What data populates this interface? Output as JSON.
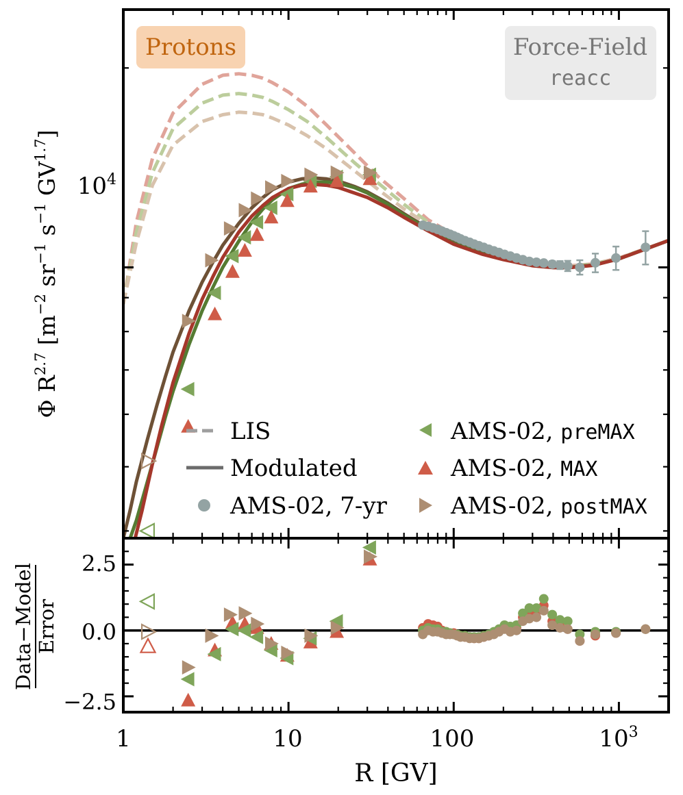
{
  "panel": {
    "species_tag": "Protons",
    "species_tag_color": "#f8d3b1",
    "species_tag_text_color": "#c0650f",
    "model_tag_line1": "Force-Field",
    "model_tag_line2": "reacc",
    "model_tag_color": "#ebebeb",
    "model_tag_text_color": "#777777"
  },
  "colors": {
    "sevenyr": "#93a3a3",
    "premax": "#7fa55a",
    "max": "#cf5c48",
    "postmax": "#ad8e72",
    "model_premax": "#557b32",
    "model_max": "#a5372b",
    "model_postmax": "#6e5136",
    "lis_premax": "#bccd9c",
    "lis_max": "#e0a49a",
    "lis_postmax": "#d8c2ac"
  },
  "legend": {
    "lis": "LIS",
    "modulated": "Modulated",
    "sevenyr": "AMS-02, 7-yr",
    "premax_prefix": "AMS-02, ",
    "premax_code": "preMAX",
    "max_prefix": "AMS-02, ",
    "max_code": "MAX",
    "postmax_prefix": "AMS-02, ",
    "postmax_code": "postMAX"
  },
  "axes": {
    "xlabel": "R [GV]",
    "ylabel_main": "Φ R^2.7 [m^-2 sr^-1 s^-1 GV^1.7]",
    "ylabel_resid_num": "Data−Model",
    "ylabel_resid_den": "Error",
    "x_ticks": [
      "1",
      "10",
      "100",
      "10^3"
    ],
    "y_main_tick": "10^4",
    "y_resid_ticks": [
      "2.5",
      "0.0",
      "−2.5"
    ]
  },
  "chart_data": [
    {
      "type": "line",
      "panel": "main",
      "xscale": "log",
      "yscale": "log",
      "xlim": [
        1,
        2000
      ],
      "ylim": [
        3900,
        24500
      ],
      "series": [
        {
          "name": "LIS",
          "style": "dashed",
          "color_key": "lis_max",
          "x": [
            1.0,
            1.2,
            1.5,
            2.0,
            3.0,
            4.0,
            5.0,
            6.0,
            7.0,
            8.0,
            10.0,
            13.0,
            17.0,
            25.0,
            35.0,
            50.0,
            70.0,
            100.0,
            150.0,
            200.0,
            300.0,
            400.0,
            500.0,
            700.0,
            1000.0,
            1500.0,
            2000.0
          ],
          "y": [
            8800,
            11700,
            14600,
            17100,
            18900,
            19500,
            19600,
            19500,
            19300,
            19000,
            18400,
            17500,
            16400,
            14900,
            13700,
            12700,
            11800,
            11200,
            10700,
            10450,
            10150,
            10050,
            10050,
            10120,
            10330,
            10700,
            10980
          ]
        },
        {
          "name": "LIS",
          "style": "dashed",
          "color_key": "lis_premax",
          "x": [
            1.0,
            1.2,
            1.5,
            2.0,
            3.0,
            4.0,
            5.0,
            6.0,
            7.0,
            8.0,
            10.0,
            13.0,
            17.0,
            25.0,
            35.0,
            50.0,
            70.0,
            100.0,
            150.0,
            200.0,
            300.0,
            400.0,
            500.0,
            700.0,
            1000.0,
            1500.0,
            2000.0
          ],
          "y": [
            8800,
            11300,
            13900,
            16200,
            17700,
            18200,
            18300,
            18200,
            18050,
            17800,
            17300,
            16600,
            15700,
            14400,
            13400,
            12450,
            11700,
            11100,
            10650,
            10420,
            10130,
            10040,
            10040,
            10110,
            10320,
            10700,
            10980
          ]
        },
        {
          "name": "LIS",
          "style": "dashed",
          "color_key": "lis_postmax",
          "x": [
            1.0,
            1.2,
            1.5,
            2.0,
            3.0,
            4.0,
            5.0,
            6.0,
            7.0,
            8.0,
            10.0,
            13.0,
            17.0,
            25.0,
            35.0,
            50.0,
            70.0,
            100.0,
            150.0,
            200.0,
            300.0,
            400.0,
            500.0,
            700.0,
            1000.0,
            1500.0,
            2000.0
          ],
          "y": [
            8800,
            10900,
            13300,
            15300,
            16600,
            17000,
            17150,
            17100,
            17000,
            16800,
            16400,
            15800,
            15100,
            14000,
            13100,
            12250,
            11600,
            11050,
            10620,
            10400,
            10120,
            10030,
            10030,
            10100,
            10310,
            10690,
            10980
          ]
        },
        {
          "name": "Modulated",
          "style": "solid",
          "color_key": "model_postmax",
          "x": [
            1.0,
            1.1,
            1.2,
            1.4,
            1.6,
            1.8,
            2.0,
            2.5,
            3.0,
            3.5,
            4.0,
            5.0,
            6.0,
            7.0,
            8.0,
            10.0,
            12.0,
            14.0,
            17.0,
            20.0,
            25.0,
            30.0,
            40.0,
            50.0,
            70.0,
            100.0,
            150.0,
            200.0,
            300.0,
            400.0,
            500.0,
            700.0,
            1000.0,
            1500.0,
            2000.0
          ],
          "y": [
            3900,
            4300,
            4750,
            5500,
            6200,
            6850,
            7450,
            8600,
            9500,
            10200,
            10800,
            11650,
            12300,
            12750,
            13100,
            13450,
            13600,
            13650,
            13600,
            13500,
            13250,
            13000,
            12500,
            12050,
            11450,
            10900,
            10500,
            10300,
            10070,
            10000,
            10000,
            10080,
            10300,
            10690,
            10980
          ]
        },
        {
          "name": "Modulated",
          "style": "solid",
          "color_key": "model_premax",
          "x": [
            1.1,
            1.2,
            1.4,
            1.6,
            1.8,
            2.0,
            2.5,
            3.0,
            3.5,
            4.0,
            5.0,
            6.0,
            7.0,
            8.0,
            10.0,
            12.0,
            14.0,
            17.0,
            20.0,
            25.0,
            30.0,
            40.0,
            50.0,
            70.0,
            100.0,
            150.0,
            200.0,
            300.0,
            400.0,
            500.0,
            700.0,
            1000.0,
            1500.0,
            2000.0
          ],
          "y": [
            3900,
            4150,
            4750,
            5350,
            5950,
            6500,
            7650,
            8600,
            9350,
            10000,
            10950,
            11700,
            12250,
            12650,
            13150,
            13350,
            13450,
            13450,
            13400,
            13200,
            12950,
            12450,
            12000,
            11400,
            10870,
            10480,
            10280,
            10060,
            9995,
            9995,
            10075,
            10300,
            10690,
            10980
          ]
        },
        {
          "name": "Modulated",
          "style": "solid",
          "color_key": "model_max",
          "x": [
            1.18,
            1.3,
            1.5,
            1.7,
            2.0,
            2.5,
            3.0,
            3.5,
            4.0,
            5.0,
            6.0,
            7.0,
            8.0,
            10.0,
            12.0,
            14.0,
            17.0,
            20.0,
            25.0,
            30.0,
            40.0,
            50.0,
            70.0,
            100.0,
            150.0,
            200.0,
            300.0,
            400.0,
            500.0,
            700.0,
            1000.0,
            1500.0,
            2000.0
          ],
          "y": [
            3900,
            4300,
            5050,
            5750,
            6700,
            7950,
            8950,
            9700,
            10350,
            11300,
            11950,
            12400,
            12750,
            13150,
            13300,
            13350,
            13300,
            13200,
            12950,
            12750,
            12300,
            11900,
            11350,
            10840,
            10460,
            10270,
            10055,
            9990,
            9990,
            10070,
            10300,
            10690,
            10980
          ]
        }
      ]
    },
    {
      "type": "scatter",
      "panel": "main",
      "xscale": "log",
      "yscale": "log",
      "series": [
        {
          "name": "AMS-02, 7-yr",
          "marker": "circle",
          "color_key": "sevenyr",
          "x": [
            65,
            70,
            75,
            80,
            85,
            90,
            95,
            100,
            105,
            110,
            117,
            125,
            133,
            142,
            152,
            163,
            175,
            188,
            203,
            220,
            240,
            262,
            287,
            317,
            351,
            395,
            440,
            490,
            580,
            720,
            960,
            1450
          ],
          "y": [
            11580,
            11530,
            11470,
            11410,
            11340,
            11280,
            11220,
            11160,
            11100,
            11040,
            10970,
            10910,
            10840,
            10780,
            10720,
            10650,
            10590,
            10530,
            10460,
            10400,
            10330,
            10270,
            10210,
            10180,
            10150,
            10110,
            10080,
            10050,
            10000,
            10160,
            10330,
            10720
          ],
          "yerr": [
            25,
            25,
            25,
            25,
            25,
            25,
            25,
            25,
            25,
            25,
            25,
            25,
            25,
            25,
            25,
            25,
            25,
            30,
            30,
            30,
            35,
            40,
            50,
            60,
            80,
            110,
            140,
            180,
            250,
            330,
            420,
            620
          ]
        },
        {
          "name": "AMS-02, preMAX",
          "marker": "tri-left",
          "color_key": "premax",
          "x": [
            2.47,
            3.58,
            4.58,
            5.44,
            6.45,
            7.86,
            9.83,
            13.6,
            19.6,
            31.1
          ],
          "y": [
            6550,
            9150,
            10400,
            11100,
            11700,
            12300,
            12900,
            13500,
            13700,
            13800
          ]
        },
        {
          "name": "AMS-02, preMAX (open)",
          "marker": "tri-left-open",
          "color_key": "premax",
          "x": [
            1.41
          ],
          "y": [
            4000
          ]
        },
        {
          "name": "AMS-02, MAX",
          "marker": "tri-up",
          "color_key": "max",
          "x": [
            2.47,
            3.58,
            4.58,
            5.44,
            6.45,
            7.86,
            9.83,
            13.6,
            19.6,
            31.1
          ],
          "y": [
            5750,
            8500,
            9850,
            10600,
            11200,
            11900,
            12600,
            13250,
            13500,
            13600
          ]
        },
        {
          "name": "AMS-02, postMAX",
          "marker": "tri-right",
          "color_key": "postmax",
          "x": [
            2.47,
            3.41,
            4.43,
            5.44,
            6.45,
            7.86,
            9.83,
            13.6,
            19.6,
            31.1
          ],
          "y": [
            8300,
            10250,
            11450,
            12200,
            12700,
            13200,
            13500,
            13800,
            13900,
            13900
          ]
        },
        {
          "name": "AMS-02, postMAX (open)",
          "marker": "tri-right-open",
          "color_key": "postmax",
          "x": [
            1.41
          ],
          "y": [
            5100
          ]
        }
      ]
    },
    {
      "type": "scatter",
      "panel": "residual",
      "xscale": "log",
      "yscale": "linear",
      "xlim": [
        1,
        2000
      ],
      "ylim": [
        -3.1,
        3.5
      ],
      "ylabel": "Data−Model / Error",
      "xlabel": "R [GV]",
      "series": [
        {
          "name": "MAX",
          "marker": "tri-up",
          "color_key": "max",
          "x": [
            2.47,
            3.58,
            4.58,
            5.44,
            6.45,
            7.86,
            9.83,
            13.6,
            19.6,
            31.1
          ],
          "y": [
            -2.65,
            -0.75,
            0.3,
            0.25,
            0.1,
            -0.5,
            -0.95,
            -0.45,
            -0.05,
            2.7
          ]
        },
        {
          "name": "MAX (open)",
          "marker": "tri-up-open",
          "color_key": "max",
          "x": [
            1.41
          ],
          "y": [
            -0.6
          ]
        },
        {
          "name": "preMAX",
          "marker": "tri-left",
          "color_key": "premax",
          "x": [
            2.47,
            3.58,
            4.58,
            5.44,
            6.45,
            7.86,
            9.83,
            13.6,
            19.6,
            31.1
          ],
          "y": [
            -1.85,
            -0.9,
            0.05,
            0.0,
            -0.25,
            -0.75,
            -1.05,
            -0.3,
            0.35,
            3.15
          ]
        },
        {
          "name": "preMAX (open)",
          "marker": "tri-left-open",
          "color_key": "premax",
          "x": [
            1.41
          ],
          "y": [
            1.1
          ]
        },
        {
          "name": "postMAX",
          "marker": "tri-right",
          "color_key": "postmax",
          "x": [
            2.47,
            3.41,
            4.43,
            5.44,
            6.45,
            7.86,
            9.83,
            13.6,
            19.6,
            31.1
          ],
          "y": [
            -1.4,
            -0.2,
            0.6,
            0.65,
            0.25,
            -0.5,
            -0.85,
            -0.2,
            0.1,
            2.8
          ]
        },
        {
          "name": "postMAX (open)",
          "marker": "tri-right-open",
          "color_key": "postmax",
          "x": [
            1.41
          ],
          "y": [
            -0.05
          ]
        },
        {
          "name": "MAX circles",
          "marker": "circle",
          "color_key": "max",
          "x": [
            65,
            70,
            75,
            80,
            85,
            90,
            95,
            100,
            105,
            110,
            117,
            125,
            133,
            142,
            152,
            163,
            175,
            188,
            203,
            220,
            240,
            262,
            287,
            317,
            351,
            395,
            440,
            490,
            580,
            720,
            960,
            1450
          ],
          "y": [
            0.1,
            0.25,
            0.2,
            0.15,
            0.0,
            -0.05,
            -0.1,
            -0.1,
            -0.15,
            -0.2,
            -0.25,
            -0.25,
            -0.3,
            -0.3,
            -0.25,
            -0.2,
            -0.1,
            0.0,
            0.1,
            0.05,
            0.1,
            0.5,
            0.65,
            0.7,
            0.95,
            0.35,
            0.15,
            0.05,
            -0.4,
            -0.2,
            -0.1,
            0.05
          ]
        },
        {
          "name": "preMAX circles",
          "marker": "circle",
          "color_key": "premax",
          "x": [
            65,
            70,
            75,
            80,
            85,
            90,
            95,
            100,
            105,
            110,
            117,
            125,
            133,
            142,
            152,
            163,
            175,
            188,
            203,
            220,
            240,
            262,
            287,
            317,
            351,
            395,
            440,
            490,
            580,
            720,
            960,
            1450
          ],
          "y": [
            0.0,
            0.1,
            0.05,
            0.05,
            -0.05,
            -0.05,
            -0.1,
            -0.15,
            -0.15,
            -0.2,
            -0.2,
            -0.25,
            -0.25,
            -0.25,
            -0.2,
            -0.15,
            -0.05,
            0.05,
            0.2,
            0.15,
            0.2,
            0.65,
            0.85,
            0.85,
            1.2,
            0.6,
            0.4,
            0.35,
            -0.15,
            -0.05,
            -0.05,
            0.05
          ]
        },
        {
          "name": "postMAX circles",
          "marker": "circle",
          "color_key": "postmax",
          "x": [
            65,
            70,
            75,
            80,
            85,
            90,
            95,
            100,
            105,
            110,
            117,
            125,
            133,
            142,
            152,
            163,
            175,
            188,
            203,
            220,
            240,
            262,
            287,
            317,
            351,
            395,
            440,
            490,
            580,
            720,
            960,
            1450
          ],
          "y": [
            -0.15,
            0.0,
            -0.05,
            -0.05,
            -0.1,
            -0.15,
            -0.15,
            -0.15,
            -0.2,
            -0.25,
            -0.25,
            -0.3,
            -0.3,
            -0.3,
            -0.25,
            -0.2,
            -0.15,
            -0.05,
            0.05,
            -0.05,
            0.0,
            0.35,
            0.45,
            0.5,
            0.75,
            0.2,
            0.1,
            0.05,
            -0.4,
            -0.15,
            -0.1,
            0.05
          ]
        }
      ]
    }
  ]
}
